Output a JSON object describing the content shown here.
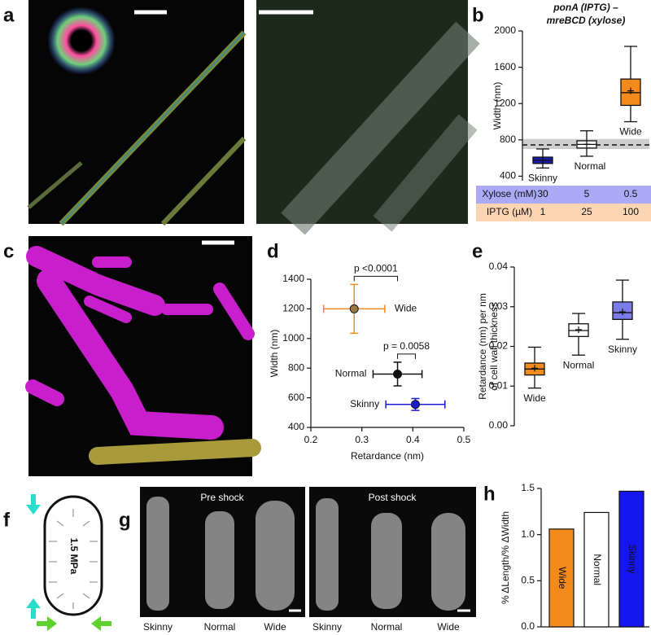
{
  "panels": [
    "a",
    "b",
    "c",
    "d",
    "e",
    "f",
    "g",
    "h"
  ],
  "pressure": "1.5 MPa",
  "shock_titles": [
    "Pre shock",
    "Post shock"
  ],
  "cell_captions": [
    "Skinny",
    "Normal",
    "Wide",
    "Skinny",
    "Normal",
    "Wide"
  ],
  "chart_data": [
    {
      "type": "box",
      "title": [
        "ponA (IPTG) –",
        "mreBCD (xylose)"
      ],
      "ylabel": [
        "Width (nm)"
      ],
      "ylim": [
        350,
        2000
      ],
      "yticks": [
        400,
        800,
        1200,
        1600,
        2000
      ],
      "reference_line": 745,
      "reference_band": [
        700,
        810
      ],
      "series": [
        {
          "name": "Skinny",
          "color": "#1c1cb0",
          "whisker_low": 490,
          "q1": 540,
          "median": 575,
          "q3": 610,
          "whisker_high": 700,
          "mean": 578
        },
        {
          "name": "Normal",
          "color": "#ffffff",
          "whisker_low": 620,
          "q1": 710,
          "median": 750,
          "q3": 790,
          "whisker_high": 900,
          "mean": 752
        },
        {
          "name": "Wide",
          "color": "#f28b1c",
          "whisker_low": 1000,
          "q1": 1180,
          "median": 1320,
          "q3": 1470,
          "whisker_high": 1830,
          "mean": 1340
        }
      ],
      "table": [
        {
          "label": "Xylose (mM)",
          "color": "#aaaaf6",
          "values": [
            30,
            5,
            0.5
          ]
        },
        {
          "label": "IPTG (µM)",
          "color": "#fbd5b2",
          "values": [
            1,
            25,
            100
          ]
        }
      ]
    },
    {
      "type": "scatter",
      "xlabel": "Retardance (nm)",
      "ylabel": "Width (nm)",
      "xlim": [
        0.2,
        0.5
      ],
      "xticks": [
        0.2,
        0.3,
        0.4,
        0.5
      ],
      "ylim": [
        400,
        1400
      ],
      "yticks": [
        400,
        600,
        800,
        1000,
        1200,
        1400
      ],
      "annotations": [
        "p <0.0001",
        "p = 0.0058"
      ],
      "series": [
        {
          "name": "Wide",
          "color": "#f28b1c",
          "x": 0.285,
          "y": 1200,
          "xerr": 0.06,
          "yerr": 165
        },
        {
          "name": "Normal",
          "color": "#111111",
          "x": 0.37,
          "y": 760,
          "xerr": 0.048,
          "yerr": 80
        },
        {
          "name": "Skinny",
          "color": "#1c1cd0",
          "x": 0.405,
          "y": 555,
          "xerr": 0.058,
          "yerr": 40
        }
      ]
    },
    {
      "type": "box",
      "ylabel": [
        "Retardance (nm) per nm",
        "of cell wall thickness"
      ],
      "ylim": [
        0,
        0.04
      ],
      "yticks": [
        {
          "value": 0,
          "label": "0.00"
        },
        0.01,
        0.02,
        0.03,
        0.04
      ],
      "series": [
        {
          "name": "Wide",
          "color": "#f28b1c",
          "whisker_low": 0.0095,
          "q1": 0.0128,
          "median": 0.0143,
          "q3": 0.0158,
          "whisker_high": 0.0198,
          "mean": 0.0145
        },
        {
          "name": "Normal",
          "color": "#ffffff",
          "whisker_low": 0.0178,
          "q1": 0.0225,
          "median": 0.024,
          "q3": 0.0257,
          "whisker_high": 0.0283,
          "mean": 0.0242
        },
        {
          "name": "Skinny",
          "color": "#7b7bea",
          "whisker_low": 0.0218,
          "q1": 0.0268,
          "median": 0.0285,
          "q3": 0.0312,
          "whisker_high": 0.0367,
          "mean": 0.0287
        }
      ]
    },
    {
      "type": "bar",
      "ylabel": [
        "% ΔLength/% ΔWidth"
      ],
      "ylim": [
        0,
        1.5
      ],
      "yticks": [
        {
          "value": 0,
          "label": "0.0"
        },
        0.5,
        {
          "value": 1,
          "label": "1.0"
        },
        1.5
      ],
      "categories": [
        "Wide",
        "Normal",
        "Skinny"
      ],
      "values": [
        1.06,
        1.24,
        1.47
      ],
      "colors": [
        "#f28b1c",
        "#ffffff",
        "#1515f0"
      ]
    }
  ]
}
